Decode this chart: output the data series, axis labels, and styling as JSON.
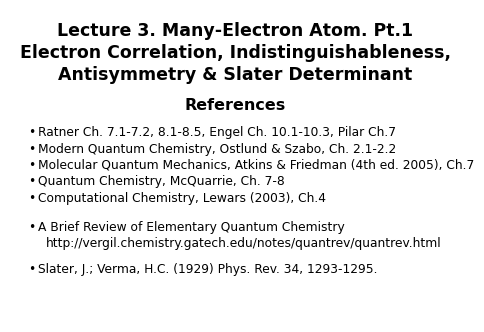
{
  "background_color": "#ffffff",
  "title_lines": [
    "Lecture 3. Many-Electron Atom. Pt.1",
    "Electron Correlation, Indistinguishableness,",
    "Antisymmetry & Slater Determinant"
  ],
  "section_header": "References",
  "bullet_group1": [
    "Ratner Ch. 7.1-7.2, 8.1-8.5, Engel Ch. 10.1-10.3, Pilar Ch.7",
    "Modern Quantum Chemistry, Ostlund & Szabo, Ch. 2.1-2.2",
    "Molecular Quantum Mechanics, Atkins & Friedman (4th ed. 2005), Ch.7",
    "Quantum Chemistry, McQuarrie, Ch. 7-8",
    "Computational Chemistry, Lewars (2003), Ch.4"
  ],
  "bullet_group2_line1": "A Brief Review of Elementary Quantum Chemistry",
  "bullet_group2_line2": "  http://vergil.chemistry.gatech.edu/notes/quantrev/quantrev.html",
  "bullet_group3": "Slater, J.; Verma, H.C. (1929) Phys. Rev. 34, 1293-1295.",
  "title_fontsize": 12.5,
  "header_fontsize": 11.5,
  "body_fontsize": 8.8,
  "text_color": "#000000"
}
